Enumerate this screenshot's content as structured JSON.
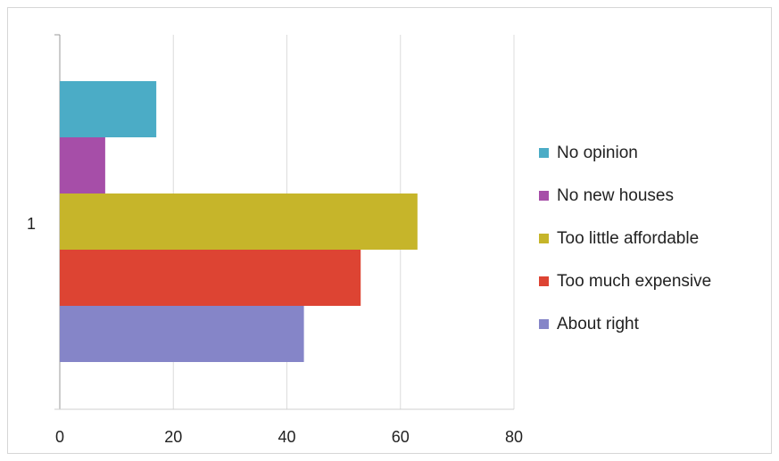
{
  "chart_data": {
    "type": "bar",
    "orientation": "horizontal",
    "categories": [
      "1"
    ],
    "series": [
      {
        "name": "No opinion",
        "values": [
          17
        ],
        "color": "#4bacc6"
      },
      {
        "name": "No new houses",
        "values": [
          8
        ],
        "color": "#a64ea8"
      },
      {
        "name": "Too little affordable",
        "values": [
          63
        ],
        "color": "#c6b52a"
      },
      {
        "name": "Too much expensive",
        "values": [
          53
        ],
        "color": "#dd4433"
      },
      {
        "name": "About right",
        "values": [
          43
        ],
        "color": "#8585c8"
      }
    ],
    "title": "",
    "xlabel": "",
    "ylabel": "",
    "xlim": [
      0,
      80
    ],
    "xticks": [
      "0",
      "20",
      "40",
      "60",
      "80"
    ],
    "grid": true,
    "legend": "right"
  }
}
